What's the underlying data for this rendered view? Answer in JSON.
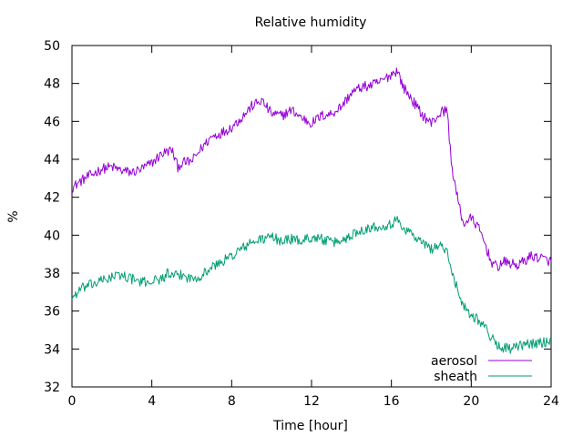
{
  "chart_data": {
    "type": "line",
    "title": "Relative humidity",
    "xlabel": "Time [hour]",
    "ylabel": "%",
    "xlim": [
      0,
      24
    ],
    "ylim": [
      32,
      50
    ],
    "xticks": [
      0,
      4,
      8,
      12,
      16,
      20,
      24
    ],
    "yticks": [
      32,
      34,
      36,
      38,
      40,
      42,
      44,
      46,
      48,
      50
    ],
    "grid": false,
    "legend_position": "bottom-right",
    "series": [
      {
        "name": "aerosol",
        "color": "#9400d3",
        "x": [
          0,
          0.5,
          1,
          1.5,
          2,
          2.5,
          3,
          3.5,
          4,
          4.5,
          5,
          5.3,
          5.5,
          6,
          6.5,
          7,
          7.5,
          8,
          8.5,
          9,
          9.5,
          10,
          10.5,
          11,
          11.5,
          12,
          12.5,
          13,
          13.5,
          14,
          14.5,
          15,
          15.5,
          16,
          16.3,
          16.6,
          17,
          17.5,
          18,
          18.5,
          18.8,
          19,
          19.3,
          19.6,
          20,
          20.3,
          20.6,
          21,
          21.3,
          21.6,
          22,
          22.3,
          22.6,
          23,
          23.5,
          24
        ],
        "y": [
          42.5,
          42.9,
          43.2,
          43.5,
          43.6,
          43.4,
          43.3,
          43.5,
          43.8,
          44.3,
          44.5,
          43.6,
          43.8,
          43.9,
          44.6,
          45.2,
          45.4,
          45.7,
          46.2,
          46.8,
          47.1,
          46.4,
          46.3,
          46.6,
          46.2,
          45.9,
          46.3,
          46.4,
          46.8,
          47.5,
          47.8,
          47.9,
          48.1,
          48.5,
          48.7,
          47.8,
          47.2,
          46.4,
          45.9,
          46.5,
          46.6,
          43.8,
          42.0,
          40.6,
          40.9,
          40.5,
          39.8,
          38.6,
          38.3,
          38.6,
          38.5,
          38.4,
          38.6,
          38.9,
          38.8,
          38.6
        ]
      },
      {
        "name": "sheath",
        "color": "#009e73",
        "x": [
          0,
          0.5,
          1,
          1.5,
          2,
          2.5,
          3,
          3.5,
          4,
          4.5,
          4.8,
          5,
          5.5,
          6,
          6.5,
          7,
          7.5,
          8,
          8.5,
          9,
          9.5,
          10,
          10.5,
          11,
          11.5,
          12,
          12.5,
          13,
          13.5,
          14,
          14.5,
          15,
          15.5,
          16,
          16.3,
          16.6,
          17,
          17.5,
          18,
          18.5,
          18.8,
          19,
          19.3,
          19.6,
          20,
          20.3,
          20.6,
          21,
          21.3,
          21.6,
          22,
          22.3,
          22.6,
          23,
          23.5,
          24
        ],
        "y": [
          36.7,
          37.2,
          37.4,
          37.6,
          37.8,
          37.9,
          37.7,
          37.5,
          37.6,
          37.7,
          38.0,
          37.8,
          37.9,
          37.7,
          37.9,
          38.3,
          38.6,
          38.9,
          39.3,
          39.6,
          39.8,
          39.9,
          39.7,
          39.8,
          39.7,
          39.9,
          39.8,
          39.6,
          39.7,
          40.0,
          40.3,
          40.4,
          40.5,
          40.6,
          40.8,
          40.4,
          40.1,
          39.6,
          39.3,
          39.5,
          39.0,
          38.2,
          37.2,
          36.3,
          35.8,
          35.6,
          35.3,
          34.6,
          34.2,
          34.1,
          34.0,
          34.1,
          34.2,
          34.3,
          34.3,
          34.5
        ]
      }
    ]
  }
}
